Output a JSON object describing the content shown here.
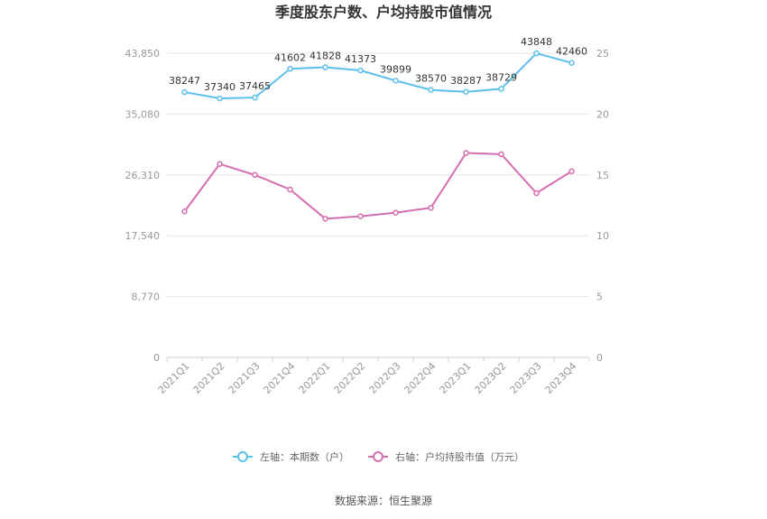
{
  "chart_data": {
    "type": "line",
    "title": "季度股东户数、户均持股市值情况",
    "categories": [
      "2021Q1",
      "2021Q2",
      "2021Q3",
      "2021Q4",
      "2022Q1",
      "2022Q2",
      "2022Q3",
      "2022Q4",
      "2023Q1",
      "2023Q2",
      "2023Q3",
      "2023Q4"
    ],
    "left_axis": {
      "min": 0,
      "max": 43850,
      "ticks": [
        0,
        8770,
        17540,
        26310,
        35080,
        43850
      ],
      "tick_labels": [
        "0",
        "8,770",
        "17,540",
        "26,310",
        "35,080",
        "43,850"
      ]
    },
    "right_axis": {
      "min": 0,
      "max": 25,
      "ticks": [
        0,
        5,
        10,
        15,
        20,
        25
      ],
      "tick_labels": [
        "0",
        "5",
        "10",
        "15",
        "20",
        "25"
      ]
    },
    "series": [
      {
        "name": "左轴：本期数（户）",
        "axis": "left",
        "color": "#5bc0eb",
        "values": [
          38247,
          37340,
          37465,
          41602,
          41828,
          41373,
          39899,
          38570,
          38287,
          38729,
          43848,
          42460
        ],
        "labels": [
          "38247",
          "37340",
          "37465",
          "41602",
          "41828",
          "41373",
          "39899",
          "38570",
          "38287",
          "38729",
          "43848",
          "42460"
        ]
      },
      {
        "name": "右轴：户均持股市值（万元）",
        "axis": "right",
        "color": "#d56eb0",
        "values": [
          12.0,
          15.9,
          15.0,
          13.8,
          11.4,
          11.6,
          11.9,
          12.3,
          16.8,
          16.7,
          13.5,
          15.3
        ]
      }
    ],
    "grid": true,
    "legend_position": "bottom"
  },
  "source": "数据来源：恒生聚源"
}
